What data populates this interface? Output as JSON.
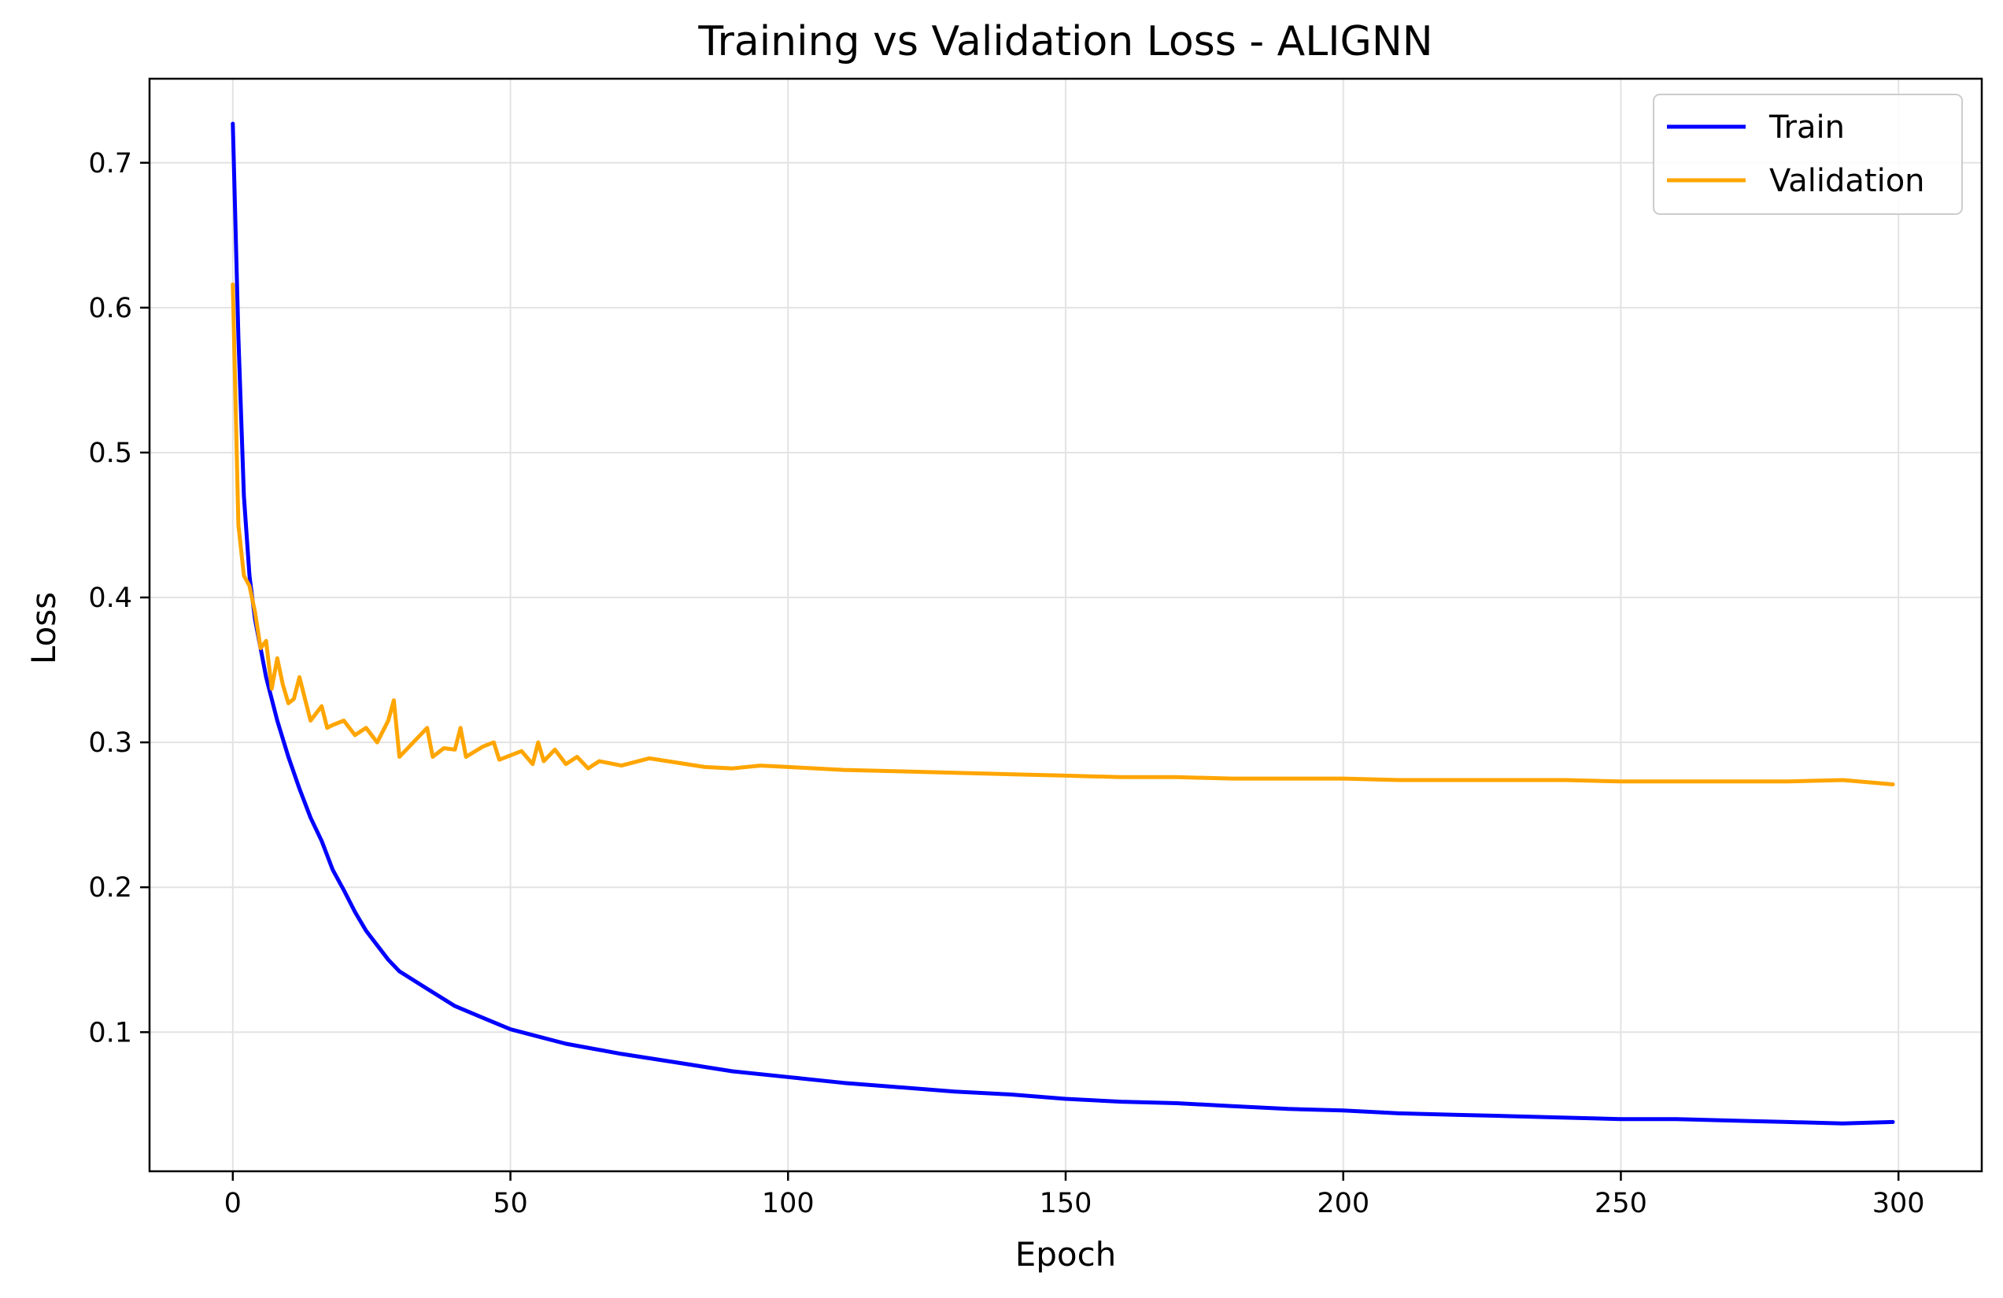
{
  "chart_data": {
    "type": "line",
    "title": "Training vs Validation Loss - ALIGNN",
    "xlabel": "Epoch",
    "ylabel": "Loss",
    "xlim": [
      -15,
      315
    ],
    "ylim": [
      0.004,
      0.758
    ],
    "xticks": [
      0,
      50,
      100,
      150,
      200,
      250,
      300
    ],
    "yticks": [
      0.1,
      0.2,
      0.3,
      0.4,
      0.5,
      0.6,
      0.7
    ],
    "xtick_labels": [
      "0",
      "50",
      "100",
      "150",
      "200",
      "250",
      "300"
    ],
    "ytick_labels": [
      "0.1",
      "0.2",
      "0.3",
      "0.4",
      "0.5",
      "0.6",
      "0.7"
    ],
    "grid": true,
    "legend_position": "top-right",
    "series": [
      {
        "name": "Train",
        "color": "#0000ff",
        "x": [
          0,
          1,
          2,
          3,
          4,
          5,
          6,
          7,
          8,
          10,
          12,
          14,
          16,
          18,
          20,
          22,
          24,
          26,
          28,
          30,
          35,
          40,
          45,
          50,
          55,
          60,
          70,
          80,
          90,
          100,
          110,
          120,
          130,
          140,
          150,
          160,
          170,
          180,
          190,
          200,
          210,
          220,
          230,
          240,
          250,
          260,
          270,
          280,
          290,
          299
        ],
        "y": [
          0.727,
          0.58,
          0.47,
          0.415,
          0.385,
          0.365,
          0.345,
          0.33,
          0.315,
          0.29,
          0.268,
          0.248,
          0.232,
          0.212,
          0.198,
          0.183,
          0.17,
          0.16,
          0.15,
          0.142,
          0.13,
          0.118,
          0.11,
          0.102,
          0.097,
          0.092,
          0.085,
          0.079,
          0.073,
          0.069,
          0.065,
          0.062,
          0.059,
          0.057,
          0.054,
          0.052,
          0.051,
          0.049,
          0.047,
          0.046,
          0.044,
          0.043,
          0.042,
          0.041,
          0.04,
          0.04,
          0.039,
          0.038,
          0.037,
          0.038
        ]
      },
      {
        "name": "Validation",
        "color": "#ffa500",
        "x": [
          0,
          1,
          2,
          3,
          4,
          5,
          6,
          7,
          8,
          9,
          10,
          11,
          12,
          13,
          14,
          15,
          16,
          17,
          18,
          20,
          22,
          24,
          26,
          28,
          29,
          30,
          32,
          35,
          36,
          38,
          40,
          41,
          42,
          45,
          47,
          48,
          50,
          52,
          54,
          55,
          56,
          58,
          60,
          62,
          64,
          66,
          70,
          75,
          80,
          85,
          90,
          95,
          100,
          110,
          120,
          130,
          140,
          150,
          160,
          170,
          180,
          190,
          200,
          210,
          220,
          230,
          240,
          250,
          260,
          270,
          280,
          290,
          299
        ],
        "y": [
          0.616,
          0.45,
          0.415,
          0.408,
          0.39,
          0.365,
          0.37,
          0.337,
          0.358,
          0.34,
          0.327,
          0.33,
          0.345,
          0.33,
          0.315,
          0.32,
          0.325,
          0.31,
          0.312,
          0.315,
          0.305,
          0.31,
          0.3,
          0.315,
          0.329,
          0.29,
          0.298,
          0.31,
          0.29,
          0.296,
          0.295,
          0.31,
          0.29,
          0.297,
          0.3,
          0.288,
          0.291,
          0.294,
          0.285,
          0.3,
          0.287,
          0.295,
          0.285,
          0.29,
          0.282,
          0.287,
          0.284,
          0.289,
          0.286,
          0.283,
          0.282,
          0.284,
          0.283,
          0.281,
          0.28,
          0.279,
          0.278,
          0.277,
          0.276,
          0.276,
          0.275,
          0.275,
          0.275,
          0.274,
          0.274,
          0.274,
          0.274,
          0.273,
          0.273,
          0.273,
          0.273,
          0.274,
          0.271
        ]
      }
    ]
  }
}
